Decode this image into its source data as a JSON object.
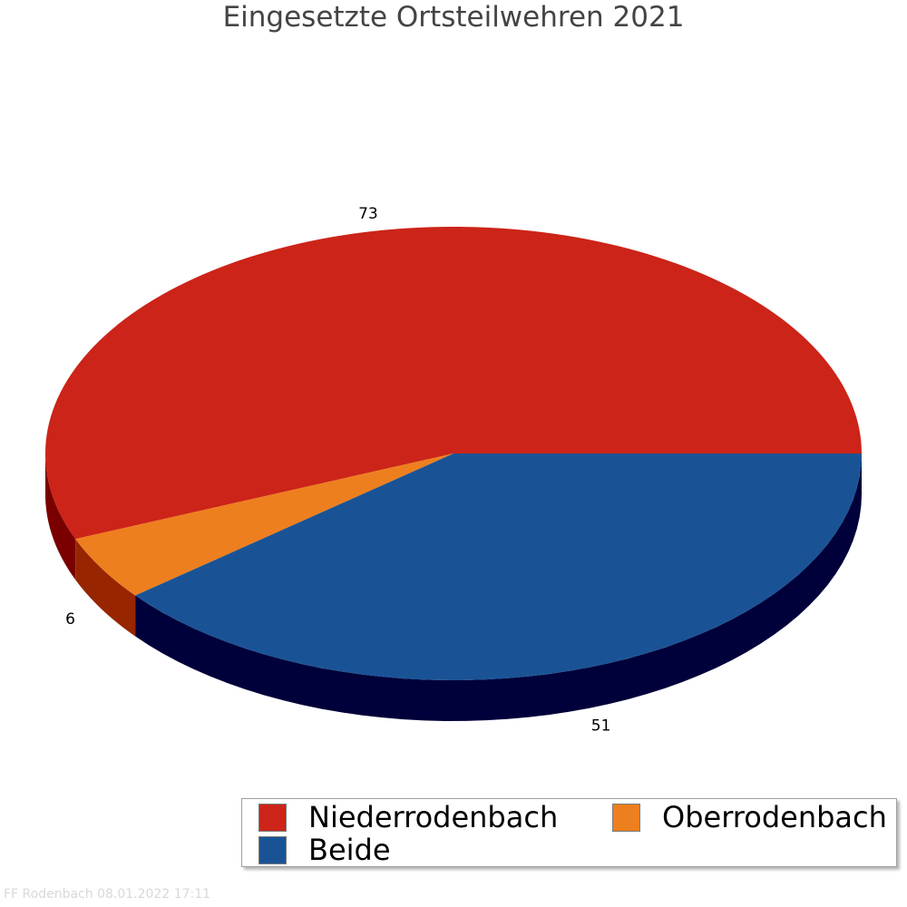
{
  "chart_data": {
    "type": "pie",
    "title": "Eingesetzte Ortsteilwehren 2021",
    "slices": [
      {
        "name": "Niederrodenbach",
        "value": 73,
        "color": "#cc2418",
        "side_color": "#7a0000"
      },
      {
        "name": "Oberrodenbach",
        "value": 6,
        "color": "#ee7f1e",
        "side_color": "#962500"
      },
      {
        "name": "Beide",
        "value": 51,
        "color": "#1a5395",
        "side_color": "#00003a"
      }
    ],
    "legend_order": [
      "Niederrodenbach",
      "Oberrodenbach",
      "Beide"
    ],
    "legend_placement": "bottom-right",
    "style": "3d-pie"
  },
  "footer": "FF Rodenbach 08.01.2022 17:11"
}
